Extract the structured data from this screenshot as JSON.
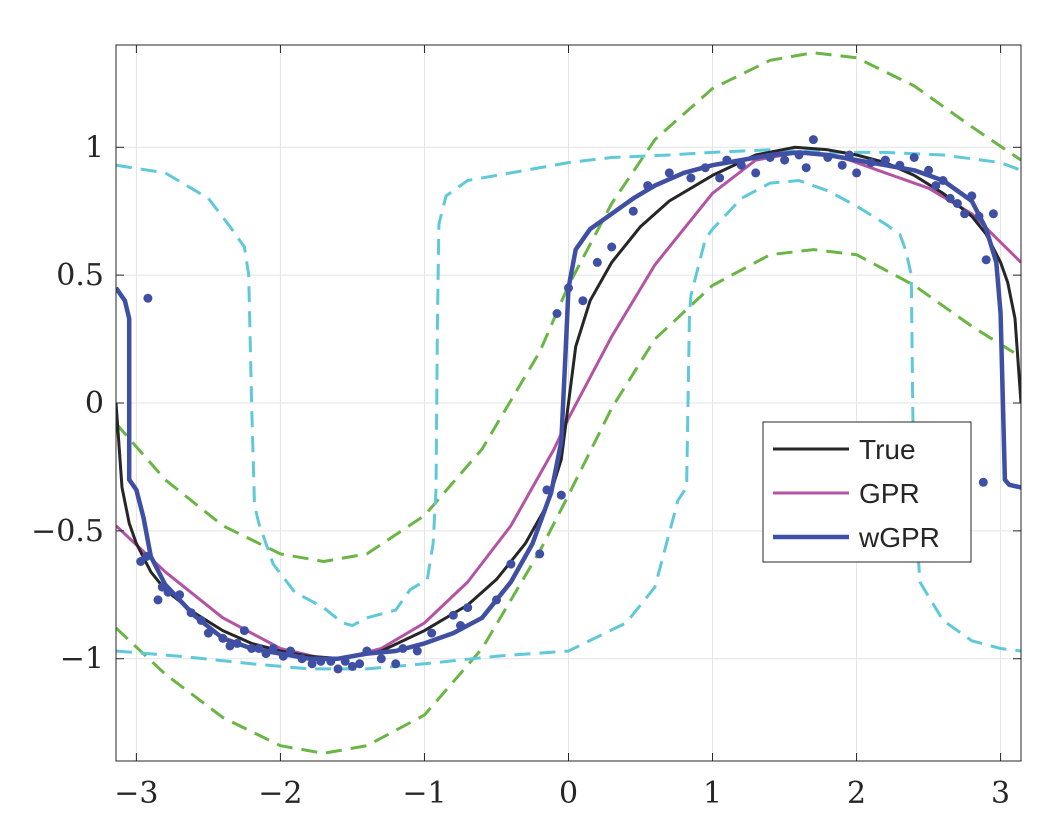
{
  "chart_data": {
    "type": "line",
    "title": "",
    "xlabel": "",
    "ylabel": "",
    "xlim": [
      -3.14159,
      3.14159
    ],
    "ylim": [
      -1.4,
      1.4
    ],
    "grid": true,
    "legend_position": "center-right",
    "x_ticks": [
      -3,
      -2,
      -1,
      0,
      1,
      2,
      3
    ],
    "x_tick_labels": [
      "−3",
      "−2",
      "−1",
      "0",
      "1",
      "2",
      "3"
    ],
    "y_ticks": [
      -1,
      -0.5,
      0,
      0.5,
      1
    ],
    "y_tick_labels": [
      "−1",
      "−0.5",
      "0",
      "0.5",
      "1"
    ],
    "legend": [
      {
        "label": "True",
        "color": "#262626"
      },
      {
        "label": "GPR",
        "color": "#b452a4"
      },
      {
        "label": "wGPR",
        "color": "#3f4fa3"
      }
    ],
    "series": [
      {
        "name": "True",
        "color": "#262626",
        "x": [
          -3.1416,
          -3.1,
          -3.05,
          -3.0,
          -2.9,
          -2.8,
          -2.6,
          -2.4,
          -2.2,
          -2.0,
          -1.8,
          -1.57,
          -1.3,
          -1.0,
          -0.7,
          -0.5,
          -0.3,
          -0.15,
          -0.05,
          0.0,
          0.05,
          0.15,
          0.3,
          0.5,
          0.7,
          1.0,
          1.3,
          1.57,
          1.8,
          2.0,
          2.2,
          2.4,
          2.6,
          2.8,
          2.9,
          3.0,
          3.05,
          3.1,
          3.1416
        ],
        "y": [
          0.0,
          -0.33,
          -0.47,
          -0.55,
          -0.66,
          -0.73,
          -0.82,
          -0.89,
          -0.94,
          -0.97,
          -0.99,
          -1.0,
          -0.97,
          -0.89,
          -0.79,
          -0.69,
          -0.55,
          -0.4,
          -0.22,
          0.0,
          0.22,
          0.4,
          0.55,
          0.69,
          0.79,
          0.89,
          0.97,
          1.0,
          0.99,
          0.97,
          0.94,
          0.89,
          0.82,
          0.73,
          0.66,
          0.55,
          0.47,
          0.33,
          0.0
        ]
      },
      {
        "name": "GPR",
        "color": "#b452a4",
        "x": [
          -3.1416,
          -2.8,
          -2.4,
          -2.0,
          -1.7,
          -1.57,
          -1.3,
          -1.0,
          -0.7,
          -0.4,
          -0.1,
          0.0,
          0.3,
          0.6,
          1.0,
          1.3,
          1.6,
          1.9,
          2.2,
          2.5,
          2.8,
          3.1416
        ],
        "y": [
          -0.48,
          -0.66,
          -0.84,
          -0.96,
          -1.0,
          -1.0,
          -0.96,
          -0.86,
          -0.7,
          -0.48,
          -0.18,
          -0.06,
          0.26,
          0.54,
          0.82,
          0.95,
          0.98,
          0.96,
          0.9,
          0.84,
          0.74,
          0.55
        ]
      },
      {
        "name": "wGPR",
        "color": "#3f4fa3",
        "x": [
          -3.1416,
          -3.08,
          -3.05,
          -3.05,
          -3.0,
          -2.95,
          -2.9,
          -2.8,
          -2.6,
          -2.4,
          -2.2,
          -2.0,
          -1.8,
          -1.6,
          -1.4,
          -1.2,
          -1.0,
          -0.8,
          -0.6,
          -0.4,
          -0.25,
          -0.12,
          -0.05,
          -0.02,
          0.0,
          0.05,
          0.15,
          0.3,
          0.45,
          0.6,
          0.8,
          1.0,
          1.2,
          1.4,
          1.6,
          1.8,
          2.0,
          2.2,
          2.4,
          2.6,
          2.8,
          2.9,
          2.97,
          3.0,
          3.03,
          3.06,
          3.1416
        ],
        "y": [
          0.45,
          0.4,
          0.33,
          -0.3,
          -0.34,
          -0.45,
          -0.6,
          -0.71,
          -0.83,
          -0.92,
          -0.96,
          -0.98,
          -1.0,
          -1.0,
          -0.98,
          -0.97,
          -0.94,
          -0.9,
          -0.84,
          -0.7,
          -0.55,
          -0.35,
          -0.15,
          0.2,
          0.45,
          0.6,
          0.68,
          0.74,
          0.8,
          0.85,
          0.9,
          0.93,
          0.95,
          0.97,
          0.98,
          0.97,
          0.95,
          0.93,
          0.91,
          0.87,
          0.79,
          0.68,
          0.55,
          0.35,
          -0.3,
          -0.32,
          -0.33
        ]
      }
    ],
    "bands": [
      {
        "color": "#6ab645",
        "upper": {
          "x": [
            -3.1416,
            -2.8,
            -2.4,
            -2.0,
            -1.7,
            -1.4,
            -1.0,
            -0.6,
            -0.2,
            0.0,
            0.3,
            0.6,
            1.0,
            1.4,
            1.7,
            2.0,
            2.4,
            2.8,
            3.1416
          ],
          "y": [
            -0.08,
            -0.3,
            -0.48,
            -0.59,
            -0.62,
            -0.59,
            -0.44,
            -0.18,
            0.2,
            0.46,
            0.78,
            1.03,
            1.23,
            1.34,
            1.37,
            1.35,
            1.24,
            1.08,
            0.95
          ]
        },
        "lower": {
          "x": [
            -3.1416,
            -2.8,
            -2.4,
            -2.0,
            -1.7,
            -1.4,
            -1.0,
            -0.6,
            -0.2,
            0.0,
            0.3,
            0.6,
            1.0,
            1.4,
            1.7,
            2.0,
            2.4,
            2.8,
            3.1416
          ],
          "y": [
            -0.88,
            -1.06,
            -1.23,
            -1.34,
            -1.37,
            -1.34,
            -1.22,
            -0.96,
            -0.58,
            -0.36,
            -0.02,
            0.25,
            0.46,
            0.58,
            0.6,
            0.58,
            0.46,
            0.3,
            0.18
          ]
        }
      },
      {
        "color": "#5fc9d9",
        "upper": {
          "x": [
            -3.1416,
            -2.8,
            -2.5,
            -2.35,
            -2.25,
            -2.22,
            -2.2,
            -2.18,
            -2.15,
            -2.05,
            -1.9,
            -1.7,
            -1.57,
            -1.5,
            -1.4,
            -1.2,
            -1.1,
            -0.98,
            -0.94,
            -0.92,
            -0.91,
            -0.9,
            -0.85,
            -0.7,
            -0.3,
            0.0,
            0.3,
            0.7,
            1.0,
            1.4,
            1.8,
            2.2,
            2.6,
            3.0,
            3.1416
          ],
          "y": [
            0.93,
            0.9,
            0.8,
            0.69,
            0.61,
            0.5,
            0.0,
            -0.4,
            -0.47,
            -0.63,
            -0.74,
            -0.8,
            -0.86,
            -0.87,
            -0.84,
            -0.81,
            -0.73,
            -0.69,
            -0.55,
            -0.34,
            0.3,
            0.7,
            0.81,
            0.87,
            0.91,
            0.94,
            0.96,
            0.97,
            0.98,
            0.99,
            0.98,
            0.98,
            0.97,
            0.94,
            0.91
          ]
        },
        "lower": {
          "x": [
            -3.1416,
            -2.7,
            -2.2,
            -1.8,
            -1.4,
            -1.0,
            -0.5,
            0.0,
            0.4,
            0.6,
            0.76,
            0.82,
            0.83,
            0.84,
            0.85,
            0.95,
            1.0,
            1.2,
            1.4,
            1.6,
            1.8,
            2.0,
            2.2,
            2.3,
            2.34,
            2.38,
            2.39,
            2.4,
            2.42,
            2.44,
            2.6,
            2.8,
            3.0,
            3.1416
          ],
          "y": [
            -0.97,
            -0.99,
            -1.02,
            -1.04,
            -1.04,
            -1.02,
            -0.99,
            -0.97,
            -0.86,
            -0.72,
            -0.38,
            -0.33,
            0.0,
            0.35,
            0.42,
            0.64,
            0.68,
            0.8,
            0.86,
            0.87,
            0.83,
            0.77,
            0.7,
            0.66,
            0.6,
            0.5,
            0.0,
            -0.45,
            -0.53,
            -0.7,
            -0.85,
            -0.93,
            -0.96,
            -0.97
          ]
        }
      }
    ],
    "observations": {
      "color": "#3f4fa3",
      "x": [
        -2.92,
        -2.97,
        -2.93,
        -2.85,
        -2.82,
        -2.78,
        -2.7,
        -2.62,
        -2.55,
        -2.5,
        -2.4,
        -2.35,
        -2.3,
        -2.25,
        -2.2,
        -2.15,
        -2.1,
        -2.05,
        -1.98,
        -1.93,
        -1.85,
        -1.78,
        -1.72,
        -1.65,
        -1.6,
        -1.55,
        -1.5,
        -1.45,
        -1.4,
        -1.3,
        -1.2,
        -1.15,
        -1.05,
        -0.95,
        -0.8,
        -0.75,
        -0.7,
        -0.5,
        -0.4,
        -0.2,
        -0.15,
        -0.05,
        0.0,
        -0.08,
        0.1,
        0.2,
        0.3,
        0.45,
        0.55,
        0.7,
        0.85,
        0.95,
        1.05,
        1.1,
        1.2,
        1.3,
        1.4,
        1.5,
        1.6,
        1.65,
        1.7,
        1.8,
        1.9,
        1.95,
        2.0,
        2.1,
        2.2,
        2.3,
        2.4,
        2.5,
        2.55,
        2.6,
        2.65,
        2.7,
        2.75,
        2.8,
        2.85,
        2.9,
        2.95,
        2.88
      ],
      "y": [
        0.41,
        -0.62,
        -0.6,
        -0.77,
        -0.72,
        -0.74,
        -0.75,
        -0.82,
        -0.85,
        -0.9,
        -0.92,
        -0.95,
        -0.94,
        -0.89,
        -0.96,
        -0.96,
        -0.98,
        -0.96,
        -0.99,
        -0.97,
        -1.0,
        -1.02,
        -1.01,
        -1.01,
        -1.04,
        -1.01,
        -1.03,
        -1.02,
        -0.97,
        -1.0,
        -1.02,
        -0.96,
        -0.97,
        -0.9,
        -0.83,
        -0.87,
        -0.8,
        -0.77,
        -0.63,
        -0.59,
        -0.34,
        -0.36,
        0.45,
        0.35,
        0.4,
        0.55,
        0.61,
        0.75,
        0.85,
        0.9,
        0.88,
        0.92,
        0.88,
        0.95,
        0.93,
        0.9,
        0.96,
        0.95,
        0.97,
        0.92,
        1.03,
        0.96,
        0.93,
        0.97,
        0.9,
        0.94,
        0.95,
        0.93,
        0.96,
        0.91,
        0.85,
        0.87,
        0.8,
        0.78,
        0.74,
        0.81,
        0.73,
        0.56,
        0.74,
        -0.31
      ]
    }
  }
}
